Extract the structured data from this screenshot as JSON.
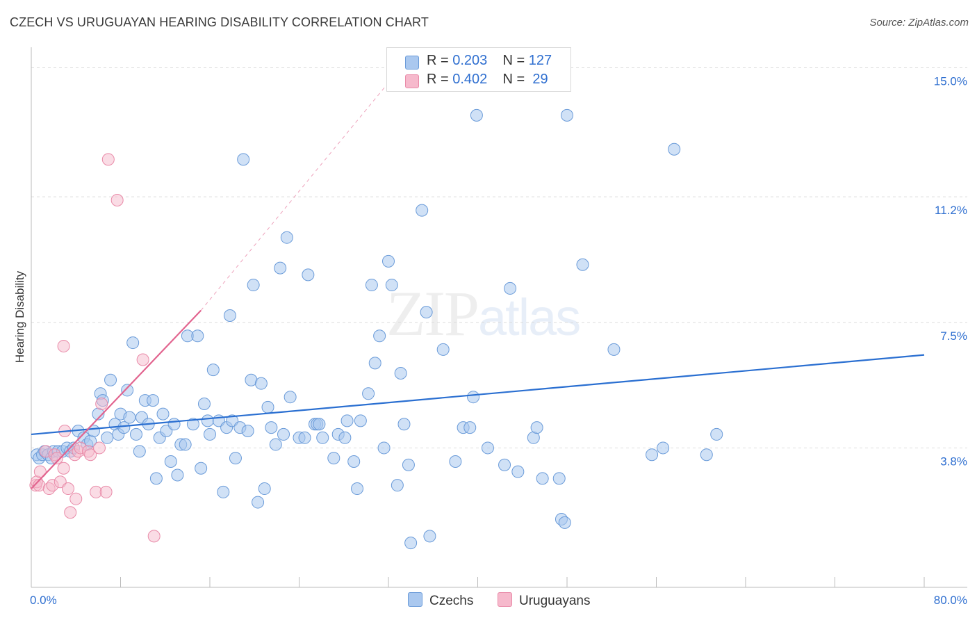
{
  "title": "CZECH VS URUGUAYAN HEARING DISABILITY CORRELATION CHART",
  "source": "Source: ZipAtlas.com",
  "watermark": {
    "zip": "ZIP",
    "atlas": "atlas"
  },
  "legend": {
    "rows": [
      {
        "r_label": "R = ",
        "r_value": "0.203",
        "n_label": "N = ",
        "n_value": "127",
        "color": "#aac8ef"
      },
      {
        "r_label": "R = ",
        "r_value": "0.402",
        "n_label": "N = ",
        "n_value": " 29",
        "color": "#f6b9cc"
      }
    ]
  },
  "bottom_legend": {
    "czechs": "Czechs",
    "uruguayans": "Uruguayans"
  },
  "colors": {
    "czech_fill": "#aac8ef",
    "czech_stroke": "#6a9bd9",
    "czech_line": "#2a6fd1",
    "uru_fill": "#f6b9cc",
    "uru_stroke": "#e98aa8",
    "uru_line": "#e2648f",
    "axis_text_blue": "#2f6fd0"
  },
  "chart_data": {
    "type": "scatter",
    "title": "CZECH VS URUGUAYAN HEARING DISABILITY CORRELATION CHART",
    "xlabel": "",
    "ylabel": "Hearing Disability",
    "xlim": [
      0,
      80
    ],
    "ylim": [
      0,
      15.4
    ],
    "x_tick_labels": [
      "0.0%",
      "80.0%"
    ],
    "y_ticks": [
      3.8,
      7.5,
      11.2,
      15.0
    ],
    "y_tick_labels": [
      "3.8%",
      "7.5%",
      "11.2%",
      "15.0%"
    ],
    "grid": "horizontal dashed",
    "legend_position": "top-center",
    "series": [
      {
        "name": "Czechs",
        "points": [
          [
            0.5,
            3.6
          ],
          [
            0.7,
            3.5
          ],
          [
            1.0,
            3.6
          ],
          [
            1.2,
            3.7
          ],
          [
            1.5,
            3.6
          ],
          [
            1.8,
            3.5
          ],
          [
            2.0,
            3.7
          ],
          [
            2.4,
            3.7
          ],
          [
            2.8,
            3.7
          ],
          [
            3.2,
            3.8
          ],
          [
            3.5,
            3.7
          ],
          [
            3.8,
            3.8
          ],
          [
            4.2,
            4.3
          ],
          [
            4.7,
            4.1
          ],
          [
            5.0,
            3.9
          ],
          [
            5.3,
            4.0
          ],
          [
            5.6,
            4.3
          ],
          [
            6.0,
            4.8
          ],
          [
            6.2,
            5.4
          ],
          [
            6.4,
            5.2
          ],
          [
            6.8,
            4.1
          ],
          [
            7.1,
            5.8
          ],
          [
            7.5,
            4.5
          ],
          [
            7.8,
            4.2
          ],
          [
            8.0,
            4.8
          ],
          [
            8.3,
            4.4
          ],
          [
            8.6,
            5.5
          ],
          [
            8.8,
            4.7
          ],
          [
            9.1,
            6.9
          ],
          [
            9.4,
            4.2
          ],
          [
            9.7,
            3.7
          ],
          [
            9.9,
            4.7
          ],
          [
            10.2,
            5.2
          ],
          [
            10.5,
            4.5
          ],
          [
            10.9,
            5.2
          ],
          [
            11.2,
            2.9
          ],
          [
            11.5,
            4.1
          ],
          [
            11.8,
            4.8
          ],
          [
            12.1,
            4.3
          ],
          [
            12.5,
            3.4
          ],
          [
            12.8,
            4.5
          ],
          [
            13.1,
            3.0
          ],
          [
            13.4,
            3.9
          ],
          [
            13.8,
            3.9
          ],
          [
            14.0,
            7.1
          ],
          [
            14.5,
            4.5
          ],
          [
            14.9,
            7.1
          ],
          [
            15.2,
            3.2
          ],
          [
            15.5,
            5.1
          ],
          [
            15.8,
            4.6
          ],
          [
            16.0,
            4.2
          ],
          [
            16.3,
            6.1
          ],
          [
            16.8,
            4.6
          ],
          [
            17.2,
            2.5
          ],
          [
            17.5,
            4.4
          ],
          [
            17.8,
            7.7
          ],
          [
            18.0,
            4.6
          ],
          [
            18.3,
            3.5
          ],
          [
            18.7,
            4.4
          ],
          [
            19.0,
            12.3
          ],
          [
            19.4,
            4.3
          ],
          [
            19.7,
            5.8
          ],
          [
            19.9,
            8.6
          ],
          [
            20.6,
            5.7
          ],
          [
            20.3,
            2.2
          ],
          [
            20.9,
            2.6
          ],
          [
            21.2,
            5.0
          ],
          [
            21.5,
            4.4
          ],
          [
            21.9,
            3.9
          ],
          [
            22.3,
            9.1
          ],
          [
            22.6,
            4.2
          ],
          [
            22.9,
            10.0
          ],
          [
            23.2,
            5.3
          ],
          [
            24.0,
            4.1
          ],
          [
            24.5,
            4.1
          ],
          [
            24.8,
            8.9
          ],
          [
            25.4,
            4.5
          ],
          [
            25.6,
            4.5
          ],
          [
            25.8,
            4.5
          ],
          [
            26.1,
            4.1
          ],
          [
            27.1,
            3.5
          ],
          [
            27.5,
            4.2
          ],
          [
            28.1,
            4.1
          ],
          [
            28.3,
            4.6
          ],
          [
            28.9,
            3.4
          ],
          [
            29.2,
            2.6
          ],
          [
            29.5,
            4.6
          ],
          [
            30.2,
            5.4
          ],
          [
            30.5,
            8.6
          ],
          [
            30.8,
            6.3
          ],
          [
            31.2,
            7.1
          ],
          [
            31.6,
            3.8
          ],
          [
            32.0,
            9.3
          ],
          [
            32.3,
            8.6
          ],
          [
            32.8,
            2.7
          ],
          [
            33.1,
            6.0
          ],
          [
            33.4,
            4.5
          ],
          [
            33.8,
            3.3
          ],
          [
            34.0,
            1.0
          ],
          [
            35.0,
            10.8
          ],
          [
            35.4,
            7.8
          ],
          [
            35.7,
            1.2
          ],
          [
            36.9,
            6.7
          ],
          [
            38.0,
            3.4
          ],
          [
            38.7,
            4.4
          ],
          [
            39.3,
            4.4
          ],
          [
            39.6,
            5.3
          ],
          [
            39.9,
            13.6
          ],
          [
            40.9,
            3.8
          ],
          [
            42.4,
            3.3
          ],
          [
            42.9,
            8.5
          ],
          [
            43.6,
            3.1
          ],
          [
            45.0,
            4.1
          ],
          [
            45.3,
            4.4
          ],
          [
            45.8,
            2.9
          ],
          [
            47.3,
            2.9
          ],
          [
            47.5,
            1.7
          ],
          [
            47.8,
            1.6
          ],
          [
            48.0,
            13.6
          ],
          [
            49.4,
            9.2
          ],
          [
            52.2,
            6.7
          ],
          [
            55.6,
            3.6
          ],
          [
            56.6,
            3.8
          ],
          [
            57.6,
            12.6
          ],
          [
            60.5,
            3.6
          ],
          [
            61.4,
            4.2
          ]
        ],
        "trend": {
          "x": [
            0,
            80
          ],
          "y": [
            4.2,
            6.54
          ]
        }
      },
      {
        "name": "Uruguayans",
        "points": [
          [
            0.4,
            2.7
          ],
          [
            0.5,
            2.8
          ],
          [
            0.7,
            2.7
          ],
          [
            0.8,
            3.1
          ],
          [
            1.3,
            3.7
          ],
          [
            1.6,
            2.6
          ],
          [
            1.9,
            2.7
          ],
          [
            2.1,
            3.6
          ],
          [
            2.3,
            3.5
          ],
          [
            2.6,
            2.8
          ],
          [
            2.9,
            3.2
          ],
          [
            3.0,
            4.3
          ],
          [
            3.3,
            2.6
          ],
          [
            3.5,
            1.9
          ],
          [
            3.9,
            3.6
          ],
          [
            4.0,
            2.3
          ],
          [
            4.2,
            3.7
          ],
          [
            4.4,
            3.8
          ],
          [
            5.1,
            3.7
          ],
          [
            5.3,
            3.6
          ],
          [
            5.8,
            2.5
          ],
          [
            6.1,
            3.8
          ],
          [
            6.3,
            5.1
          ],
          [
            6.7,
            2.5
          ],
          [
            6.9,
            12.3
          ],
          [
            7.7,
            11.1
          ],
          [
            2.9,
            6.8
          ],
          [
            10.0,
            6.4
          ],
          [
            11.0,
            1.2
          ]
        ],
        "trend": {
          "x": [
            0,
            15.2
          ],
          "y": [
            2.6,
            7.85
          ]
        },
        "trend_dashed": {
          "x": [
            15.2,
            33.6
          ],
          "y": [
            7.85,
            15.2
          ]
        }
      }
    ]
  }
}
